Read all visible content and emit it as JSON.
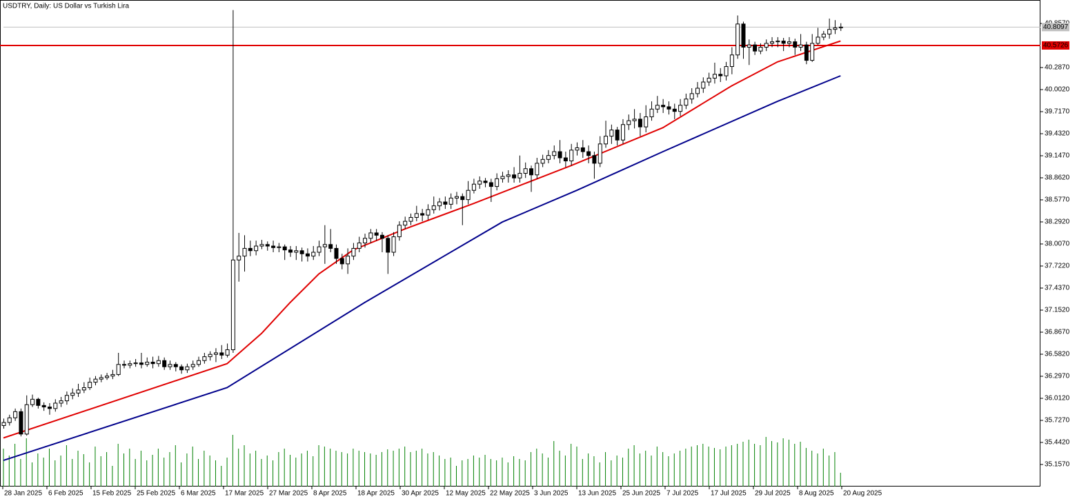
{
  "chart_data": {
    "type": "candlestick",
    "title": "USDTRY, Daily:  US Dollar vs Turkish Lira",
    "x_labels": [
      "28 Jan 2025",
      "6 Feb 2025",
      "15 Feb 2025",
      "25 Feb 2025",
      "6 Mar 2025",
      "17 Mar 2025",
      "27 Mar 2025",
      "8 Apr 2025",
      "18 Apr 2025",
      "30 Apr 2025",
      "12 May 2025",
      "22 May 2025",
      "3 Jun 2025",
      "13 Jun 2025",
      "25 Jun 2025",
      "7 Jul 2025",
      "17 Jul 2025",
      "29 Jul 2025",
      "8 Aug 2025",
      "20 Aug 2025"
    ],
    "open": [
      35.66,
      35.7,
      35.76,
      35.84,
      35.55,
      35.93,
      36.0,
      35.92,
      35.9,
      35.88,
      35.95,
      35.98,
      36.05,
      36.08,
      36.12,
      36.15,
      36.22,
      36.26,
      36.28,
      36.3,
      36.32,
      36.45,
      36.44,
      36.46,
      36.47,
      36.45,
      36.48,
      36.46,
      36.5,
      36.42,
      36.45,
      36.42,
      36.38,
      36.42,
      36.45,
      36.5,
      36.55,
      36.58,
      36.6,
      36.57,
      36.64,
      37.8,
      37.85,
      37.95,
      37.92,
      37.98,
      38.0,
      37.98,
      37.96,
      37.97,
      37.93,
      37.9,
      37.92,
      37.88,
      37.85,
      37.9,
      37.97,
      38.0,
      37.95,
      37.82,
      37.75,
      37.85,
      37.95,
      38.02,
      38.08,
      38.15,
      38.12,
      38.08,
      37.9,
      38.1,
      38.25,
      38.3,
      38.35,
      38.4,
      38.38,
      38.45,
      38.5,
      38.55,
      38.52,
      38.6,
      38.62,
      38.58,
      38.7,
      38.78,
      38.82,
      38.8,
      38.75,
      38.85,
      38.88,
      38.9,
      38.86,
      38.92,
      38.98,
      38.9,
      39.05,
      39.1,
      39.15,
      39.2,
      39.12,
      39.08,
      39.22,
      39.25,
      39.2,
      39.15,
      39.05,
      39.3,
      39.4,
      39.48,
      39.35,
      39.55,
      39.6,
      39.62,
      39.52,
      39.65,
      39.75,
      39.8,
      39.78,
      39.75,
      39.72,
      39.8,
      39.88,
      39.95,
      40.02,
      40.1,
      40.15,
      40.2,
      40.18,
      40.3,
      40.45,
      40.85,
      40.55,
      40.58,
      40.5,
      40.55,
      40.6,
      40.62,
      40.63,
      40.6,
      40.62,
      40.55,
      40.58,
      40.38,
      40.6,
      40.68,
      40.72,
      40.78,
      40.8
    ],
    "high": [
      35.75,
      35.8,
      35.88,
      35.88,
      36.05,
      36.06,
      36.02,
      35.96,
      35.95,
      36.0,
      36.03,
      36.1,
      36.14,
      36.2,
      36.22,
      36.28,
      36.3,
      36.32,
      36.34,
      36.38,
      36.6,
      36.5,
      36.5,
      36.52,
      36.6,
      36.54,
      36.55,
      36.56,
      36.54,
      36.5,
      36.48,
      36.45,
      36.46,
      36.5,
      36.55,
      36.6,
      36.62,
      36.66,
      36.7,
      36.72,
      41.03,
      38.15,
      38.12,
      38.05,
      38.05,
      38.06,
      38.04,
      38.05,
      38.02,
      38.0,
      37.98,
      37.98,
      37.96,
      37.95,
      37.98,
      38.05,
      38.25,
      38.2,
      38.0,
      37.88,
      37.95,
      38.02,
      38.1,
      38.14,
      38.2,
      38.2,
      38.16,
      38.12,
      38.16,
      38.3,
      38.36,
      38.4,
      38.5,
      38.46,
      38.52,
      38.62,
      38.6,
      38.62,
      38.66,
      38.68,
      38.66,
      38.82,
      38.85,
      38.88,
      38.86,
      38.85,
      38.92,
      38.94,
      38.96,
      39.0,
      39.15,
      39.06,
      39.02,
      39.12,
      39.16,
      39.22,
      39.28,
      39.35,
      39.2,
      39.3,
      39.32,
      39.35,
      39.28,
      39.2,
      39.4,
      39.6,
      39.55,
      39.52,
      39.62,
      39.68,
      39.75,
      39.7,
      39.8,
      39.85,
      39.92,
      39.88,
      39.85,
      39.82,
      39.88,
      39.95,
      40.02,
      40.1,
      40.16,
      40.22,
      40.35,
      40.28,
      40.36,
      40.55,
      40.96,
      40.88,
      40.65,
      40.62,
      40.6,
      40.65,
      40.68,
      40.68,
      40.67,
      40.68,
      40.66,
      40.72,
      40.62,
      40.72,
      40.8,
      40.76,
      40.92,
      40.9,
      40.86
    ],
    "low": [
      35.62,
      35.66,
      35.72,
      35.52,
      35.53,
      35.9,
      35.88,
      35.85,
      35.8,
      35.84,
      35.9,
      35.93,
      36.0,
      36.03,
      36.08,
      36.12,
      36.18,
      36.22,
      36.25,
      36.26,
      36.3,
      36.4,
      36.4,
      36.42,
      36.4,
      36.42,
      36.4,
      36.42,
      36.38,
      36.38,
      36.36,
      36.33,
      36.34,
      36.38,
      36.42,
      36.46,
      36.5,
      36.48,
      36.52,
      36.54,
      36.6,
      37.52,
      37.65,
      37.85,
      37.86,
      37.94,
      37.92,
      37.9,
      37.9,
      37.8,
      37.84,
      37.8,
      37.78,
      37.78,
      37.8,
      37.85,
      37.75,
      37.9,
      37.75,
      37.68,
      37.62,
      37.8,
      37.9,
      37.96,
      38.02,
      38.05,
      37.9,
      37.62,
      37.85,
      38.05,
      38.2,
      38.25,
      38.3,
      38.3,
      38.32,
      38.4,
      38.44,
      38.46,
      38.46,
      38.52,
      38.25,
      38.52,
      38.66,
      38.72,
      38.74,
      38.55,
      38.7,
      38.8,
      38.8,
      38.8,
      38.8,
      38.86,
      38.68,
      38.85,
      39.0,
      39.05,
      39.1,
      39.05,
      39.0,
      39.02,
      39.15,
      39.12,
      39.05,
      38.85,
      39.0,
      39.25,
      39.3,
      39.28,
      39.3,
      39.48,
      39.5,
      39.4,
      39.45,
      39.6,
      39.7,
      39.7,
      39.68,
      39.62,
      39.66,
      39.75,
      39.82,
      39.9,
      39.96,
      40.05,
      40.08,
      40.1,
      40.12,
      40.2,
      40.4,
      40.4,
      40.32,
      40.45,
      40.46,
      40.5,
      40.55,
      40.55,
      40.5,
      40.55,
      40.45,
      40.5,
      40.33,
      40.36,
      40.58,
      40.64,
      40.66,
      40.72,
      40.76
    ],
    "close": [
      35.7,
      35.76,
      35.84,
      35.55,
      35.93,
      36.0,
      35.92,
      35.9,
      35.88,
      35.95,
      35.98,
      36.05,
      36.08,
      36.12,
      36.15,
      36.22,
      36.26,
      36.28,
      36.3,
      36.32,
      36.45,
      36.44,
      36.46,
      36.47,
      36.45,
      36.48,
      36.46,
      36.5,
      36.42,
      36.45,
      36.42,
      36.38,
      36.42,
      36.45,
      36.5,
      36.55,
      36.58,
      36.6,
      36.57,
      36.64,
      37.8,
      37.85,
      37.95,
      37.92,
      37.98,
      38.0,
      37.98,
      37.96,
      37.97,
      37.93,
      37.9,
      37.92,
      37.88,
      37.85,
      37.9,
      37.97,
      38.0,
      37.95,
      37.82,
      37.75,
      37.85,
      37.95,
      38.02,
      38.08,
      38.15,
      38.12,
      38.08,
      37.9,
      38.1,
      38.25,
      38.3,
      38.35,
      38.4,
      38.38,
      38.45,
      38.5,
      38.55,
      38.52,
      38.6,
      38.62,
      38.58,
      38.7,
      38.78,
      38.82,
      38.8,
      38.75,
      38.85,
      38.88,
      38.9,
      38.86,
      38.92,
      38.98,
      38.9,
      39.05,
      39.1,
      39.15,
      39.2,
      39.12,
      39.08,
      39.22,
      39.25,
      39.2,
      39.15,
      39.05,
      39.3,
      39.4,
      39.48,
      39.35,
      39.55,
      39.6,
      39.62,
      39.52,
      39.65,
      39.75,
      39.8,
      39.78,
      39.75,
      39.72,
      39.8,
      39.88,
      39.95,
      40.02,
      40.1,
      40.15,
      40.2,
      40.18,
      40.3,
      40.45,
      40.85,
      40.55,
      40.58,
      40.5,
      40.55,
      40.6,
      40.62,
      40.63,
      40.6,
      40.62,
      40.55,
      40.58,
      40.38,
      40.6,
      40.68,
      40.72,
      40.78,
      40.8,
      40.81
    ],
    "volume": [
      55,
      45,
      62,
      40,
      70,
      35,
      48,
      42,
      55,
      38,
      45,
      60,
      40,
      52,
      47,
      35,
      58,
      44,
      50,
      30,
      62,
      48,
      55,
      40,
      52,
      38,
      46,
      55,
      42,
      50,
      60,
      35,
      48,
      58,
      40,
      52,
      45,
      38,
      30,
      42,
      75,
      55,
      60,
      48,
      52,
      40,
      45,
      38,
      50,
      55,
      46,
      42,
      48,
      52,
      44,
      60,
      58,
      55,
      52,
      50,
      48,
      55,
      52,
      50,
      48,
      46,
      50,
      54,
      52,
      55,
      58,
      50,
      52,
      55,
      48,
      50,
      45,
      40,
      42,
      30,
      38,
      40,
      45,
      42,
      46,
      40,
      38,
      42,
      35,
      44,
      40,
      38,
      50,
      55,
      48,
      42,
      66,
      52,
      45,
      62,
      58,
      40,
      48,
      44,
      35,
      50,
      38,
      45,
      42,
      55,
      60,
      48,
      52,
      45,
      58,
      50,
      44,
      48,
      52,
      55,
      58,
      60,
      62,
      58,
      56,
      54,
      58,
      60,
      62,
      65,
      68,
      62,
      60,
      72,
      66,
      64,
      70,
      68,
      62,
      65,
      56,
      52,
      48,
      55,
      45,
      50,
      20
    ],
    "vlim": [
      0,
      90
    ],
    "volume_color": "#008000",
    "up_color": "#ffffff",
    "down_color": "#000000",
    "moving_averages": [
      {
        "color": "#e00000",
        "x": [
          0,
          39,
          45,
          50,
          55,
          61,
          70,
          82,
          99,
          115,
          127,
          135,
          146
        ],
        "values": [
          35.5,
          36.46,
          36.85,
          37.25,
          37.62,
          37.93,
          38.2,
          38.53,
          39.02,
          39.51,
          40.05,
          40.36,
          40.63
        ]
      },
      {
        "color": "#00008b",
        "x": [
          0,
          39,
          63,
          87,
          100,
          115,
          135,
          146
        ],
        "values": [
          35.21,
          36.15,
          37.25,
          38.29,
          38.7,
          39.2,
          39.85,
          40.18
        ]
      }
    ],
    "ylim": [
      34.872,
      41.16
    ],
    "yticks": [
      {
        "value": 35.157,
        "label": "35.1570"
      },
      {
        "value": 35.442,
        "label": "35.4420"
      },
      {
        "value": 35.727,
        "label": "35.7270"
      },
      {
        "value": 36.012,
        "label": "36.0120"
      },
      {
        "value": 36.297,
        "label": "36.2970"
      },
      {
        "value": 36.582,
        "label": "36.5820"
      },
      {
        "value": 36.867,
        "label": "36.8670"
      },
      {
        "value": 37.152,
        "label": "37.1520"
      },
      {
        "value": 37.437,
        "label": "37.4370"
      },
      {
        "value": 37.722,
        "label": "37.7220"
      },
      {
        "value": 38.007,
        "label": "38.0070"
      },
      {
        "value": 38.292,
        "label": "38.2920"
      },
      {
        "value": 38.577,
        "label": "38.5770"
      },
      {
        "value": 38.862,
        "label": "38.8620"
      },
      {
        "value": 39.147,
        "label": "39.1470"
      },
      {
        "value": 39.432,
        "label": "39.4320"
      },
      {
        "value": 39.717,
        "label": "39.7170"
      },
      {
        "value": 40.002,
        "label": "40.0020"
      },
      {
        "value": 40.287,
        "label": "40.2870"
      },
      {
        "value": 40.857,
        "label": "40.8570"
      }
    ],
    "last_price": {
      "value": 40.8097,
      "label": "40.8097",
      "color": "#c0c0c0"
    },
    "level": {
      "value": 40.5726,
      "label": "40.5726",
      "color": "#e00000"
    }
  }
}
